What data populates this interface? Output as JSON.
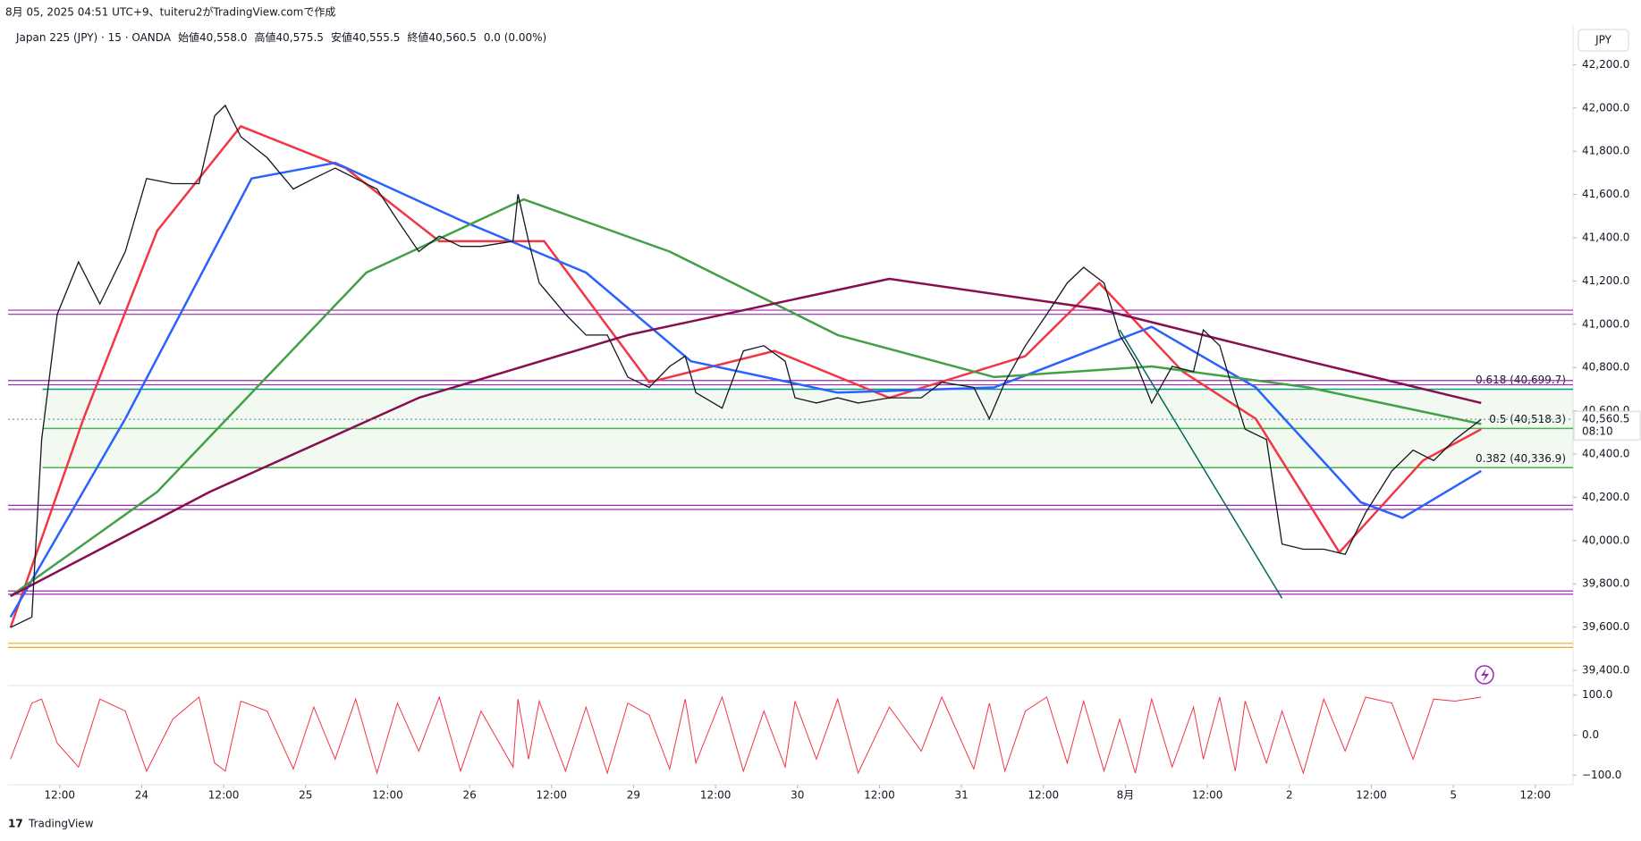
{
  "chart_data": {
    "type": "line",
    "title": "8月 05, 2025 04:51 UTC+9、tuiteru2がTradingView.comで作成",
    "symbol": "Japan 225 (JPY) · 15 · OANDA",
    "ohlc": {
      "labels": [
        "始値",
        "高値",
        "安値",
        "終値"
      ],
      "values": [
        40558.0,
        40575.5,
        40555.5,
        40560.5
      ],
      "value_labels": [
        "40,558.0",
        "40,575.5",
        "40,555.5",
        "40,560.5"
      ],
      "change": "0.0 (0.00%)"
    },
    "currency": "JPY",
    "brand": "TradingView",
    "xlim": [
      0.37,
      19.46
    ],
    "xticks": [
      {
        "value": 1,
        "label": "12:00"
      },
      {
        "value": 2,
        "label": "24"
      },
      {
        "value": 3,
        "label": "12:00"
      },
      {
        "value": 4,
        "label": "25"
      },
      {
        "value": 5,
        "label": "12:00"
      },
      {
        "value": 6,
        "label": "26"
      },
      {
        "value": 7,
        "label": "12:00"
      },
      {
        "value": 8,
        "label": "29"
      },
      {
        "value": 9,
        "label": "12:00"
      },
      {
        "value": 10,
        "label": "30"
      },
      {
        "value": 11,
        "label": "12:00"
      },
      {
        "value": 12,
        "label": "31"
      },
      {
        "value": 13,
        "label": "12:00"
      },
      {
        "value": 14,
        "label": "8月"
      },
      {
        "value": 15,
        "label": "12:00"
      },
      {
        "value": 16,
        "label": "2"
      },
      {
        "value": 17,
        "label": "12:00"
      },
      {
        "value": 18,
        "label": "5"
      },
      {
        "value": 19,
        "label": "12:00"
      }
    ],
    "ylim": [
      39330,
      42280
    ],
    "yticks": [
      {
        "value": 39400,
        "label": "39,400.0"
      },
      {
        "value": 39600,
        "label": "39,600.0"
      },
      {
        "value": 39800,
        "label": "39,800.0"
      },
      {
        "value": 40000,
        "label": "40,000.0"
      },
      {
        "value": 40200,
        "label": "40,200.0"
      },
      {
        "value": 40400,
        "label": "40,400.0"
      },
      {
        "value": 40600,
        "label": "40,600.0"
      },
      {
        "value": 40800,
        "label": "40,800.0"
      },
      {
        "value": 41000,
        "label": "41,000.0"
      },
      {
        "value": 41200,
        "label": "41,200.0"
      },
      {
        "value": 41400,
        "label": "41,400.0"
      },
      {
        "value": 41600,
        "label": "41,600.0"
      },
      {
        "value": 41800,
        "label": "41,800.0"
      },
      {
        "value": 42000,
        "label": "42,000.0"
      },
      {
        "value": 42200,
        "label": "42,200.0"
      }
    ],
    "x": [
      0.4,
      0.66,
      0.78,
      0.97,
      1.23,
      1.49,
      1.8,
      2.06,
      2.38,
      2.7,
      2.89,
      3.02,
      3.21,
      3.53,
      3.85,
      4.1,
      4.36,
      4.61,
      4.87,
      5.12,
      5.38,
      5.63,
      5.89,
      6.14,
      6.53,
      6.59,
      6.72,
      6.85,
      7.17,
      7.42,
      7.68,
      7.93,
      8.19,
      8.44,
      8.63,
      8.76,
      9.08,
      9.34,
      9.59,
      9.85,
      9.97,
      10.23,
      10.49,
      10.74,
      11.12,
      11.51,
      11.76,
      12.15,
      12.34,
      12.53,
      12.78,
      13.04,
      13.29,
      13.49,
      13.74,
      13.93,
      14.12,
      14.32,
      14.57,
      14.83,
      14.95,
      15.15,
      15.34,
      15.46,
      15.72,
      15.91,
      16.17,
      16.42,
      16.68,
      16.93,
      17.25,
      17.51,
      17.76,
      18.02,
      18.34
    ],
    "values": [
      39598,
      39646,
      40467,
      41046,
      41288,
      41094,
      41336,
      41674,
      41650,
      41650,
      41963,
      42012,
      41867,
      41770,
      41625,
      41674,
      41722,
      41674,
      41625,
      41481,
      41336,
      41408,
      41360,
      41360,
      41384,
      41601,
      41384,
      41191,
      41046,
      40950,
      40950,
      40756,
      40708,
      40805,
      40853,
      40684,
      40612,
      40877,
      40901,
      40829,
      40660,
      40636,
      40660,
      40636,
      40660,
      40660,
      40732,
      40708,
      40563,
      40732,
      40901,
      41046,
      41191,
      41263,
      41191,
      40950,
      40829,
      40636,
      40805,
      40781,
      40974,
      40901,
      40660,
      40515,
      40467,
      39984,
      39960,
      39960,
      39936,
      40129,
      40322,
      40418,
      40370,
      40467,
      40560.5
    ],
    "color": "#131722",
    "series": [
      {
        "color": "#f23645",
        "x": [
          0.4,
          1.29,
          2.19,
          3.21,
          4.49,
          5.63,
          6.91,
          8.19,
          9.72,
          11.12,
          12.78,
          13.68,
          14.7,
          15.59,
          16.61,
          17.63,
          18.34
        ],
        "values": [
          39598,
          40563,
          41432,
          41915,
          41722,
          41384,
          41384,
          40732,
          40877,
          40660,
          40853,
          41191,
          40781,
          40563,
          39945,
          40370,
          40515
        ]
      },
      {
        "color": "#2962ff",
        "x": [
          0.4,
          1.8,
          3.34,
          4.36,
          5.89,
          7.42,
          8.7,
          10.49,
          12.4,
          14.32,
          15.59,
          16.87,
          17.38,
          18.34
        ],
        "values": [
          39646,
          40563,
          41674,
          41746,
          41481,
          41239,
          40829,
          40684,
          40708,
          40988,
          40708,
          40177,
          40105,
          40322
        ]
      },
      {
        "color": "#43a047",
        "x": [
          0.4,
          2.19,
          4.74,
          6.66,
          8.44,
          10.49,
          12.4,
          14.32,
          16.23,
          18.34
        ],
        "values": [
          39743,
          40225,
          41239,
          41577,
          41336,
          40950,
          40756,
          40805,
          40708,
          40539
        ]
      },
      {
        "color": "#880e4f",
        "x": [
          0.4,
          2.83,
          5.38,
          7.93,
          11.12,
          13.68,
          16.23,
          18.34
        ],
        "values": [
          39743,
          40225,
          40660,
          40950,
          41210,
          41070,
          40829,
          40636
        ]
      }
    ],
    "levels": [
      {
        "value": 41065,
        "color": "#9c27b0"
      },
      {
        "value": 41046,
        "color": "#9c27b0"
      },
      {
        "value": 40740,
        "color": "#9c27b0"
      },
      {
        "value": 40720,
        "color": "#9c27b0"
      },
      {
        "value": 40163,
        "color": "#9c27b0"
      },
      {
        "value": 40144,
        "color": "#9c27b0"
      },
      {
        "value": 39767,
        "color": "#9c27b0"
      },
      {
        "value": 39752,
        "color": "#9c27b0"
      },
      {
        "value": 39525,
        "color": "#f5a623"
      },
      {
        "value": 39506,
        "color": "#f5a623"
      }
    ],
    "fib": [
      {
        "value": 40699.7,
        "label": "0.618 (40,699.7)",
        "color": "#089981"
      },
      {
        "value": 40518.3,
        "label": "0.5 (40,518.3)",
        "color": "#4caf50"
      },
      {
        "value": 40336.9,
        "label": "0.382 (40,336.9)",
        "color": "#4caf50"
      }
    ],
    "fib_x": 0.79,
    "trend_line": {
      "x": [
        13.93,
        15.91
      ],
      "values": [
        40974,
        39733
      ],
      "color": "#00695c"
    },
    "current": {
      "value": 40560.5,
      "label": "40,560.5",
      "countdown": "08:10"
    },
    "oscillator": {
      "ylim": [
        -124,
        124
      ],
      "yticks": [
        {
          "value": 100,
          "label": "100.0"
        },
        {
          "value": 0,
          "label": "0.0"
        },
        {
          "value": -100,
          "label": "−100.0"
        }
      ],
      "color": "#f23645",
      "values": [
        -60,
        80,
        90,
        -20,
        -80,
        90,
        60,
        -90,
        40,
        95,
        -70,
        -90,
        85,
        60,
        -85,
        70,
        -60,
        90,
        -95,
        80,
        -40,
        95,
        -90,
        60,
        -80,
        90,
        -60,
        85,
        -90,
        70,
        -95,
        80,
        50,
        -85,
        90,
        -70,
        95,
        -90,
        60,
        -80,
        85,
        -60,
        90,
        -95,
        70,
        -40,
        95,
        -85,
        80,
        -90,
        60,
        95,
        -70,
        85,
        -90,
        40,
        -95,
        90,
        -80,
        70,
        -60,
        95,
        -90,
        85,
        -70,
        60,
        -95,
        90,
        -40,
        95,
        80,
        -60,
        90,
        85,
        95
      ]
    }
  }
}
